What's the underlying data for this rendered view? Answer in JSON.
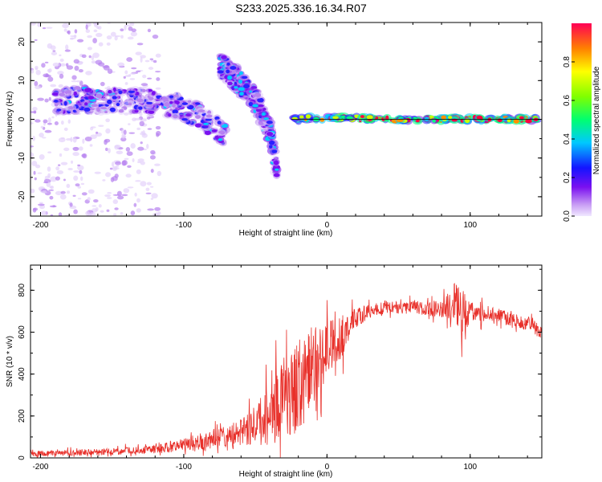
{
  "title": "S233.2025.336.16.34.R07",
  "chart_data": [
    {
      "type": "heatmap",
      "name": "spectrogram",
      "xlabel": "Height of straight line (km)",
      "ylabel": "Frequency (Hz)",
      "xlim": [
        -207,
        150
      ],
      "ylim": [
        -25,
        25
      ],
      "xticks": [
        -200,
        -100,
        0,
        100
      ],
      "xtick_labels": [
        "-200",
        "-100",
        "0",
        "100"
      ],
      "yticks": [
        -20,
        -10,
        0,
        10,
        20
      ],
      "ytick_labels": [
        "-20",
        "-10",
        "0",
        "10",
        "20"
      ],
      "colorbar": {
        "label": "Normalized spectral amplitude",
        "range": [
          0,
          1
        ],
        "ticks": [
          0.0,
          0.2,
          0.4,
          0.6,
          0.8
        ],
        "tick_labels": [
          "0.0",
          "0.2",
          "0.4",
          "0.6",
          "0.8"
        ],
        "colormap": "rainbow"
      },
      "features": [
        {
          "name": "broad-band",
          "x": [
            -190,
            -150,
            -120,
            -100,
            -85,
            -70
          ],
          "freq": [
            5,
            5,
            4.5,
            3,
            0,
            -5
          ],
          "amplitude": 0.25
        },
        {
          "name": "upper-branch",
          "x": [
            -75,
            -62,
            -50,
            -40,
            -35
          ],
          "freq": [
            14,
            10,
            5,
            -3,
            -13
          ],
          "amplitude": 0.3
        },
        {
          "name": "carrier-line",
          "x": [
            -25,
            0,
            50,
            100,
            150
          ],
          "freq": [
            0,
            0.5,
            0,
            0,
            0
          ],
          "amplitude": 0.6
        }
      ]
    },
    {
      "type": "line",
      "name": "snr",
      "xlabel": "Height of straight line (km)",
      "ylabel": "SNR (10 * v/v)",
      "xlim": [
        -207,
        150
      ],
      "ylim": [
        0,
        920
      ],
      "xticks": [
        -200,
        -100,
        0,
        100
      ],
      "xtick_labels": [
        "-200",
        "-100",
        "0",
        "100"
      ],
      "yticks": [
        0,
        200,
        400,
        600,
        800
      ],
      "ytick_labels": [
        "0",
        "200",
        "400",
        "600",
        "800"
      ],
      "color": "#e8302a",
      "envelope": {
        "x": [
          -207,
          -150,
          -120,
          -100,
          -80,
          -60,
          -50,
          -40,
          -30,
          -20,
          -10,
          0,
          10,
          20,
          30,
          40,
          60,
          80,
          90,
          95,
          100,
          120,
          140,
          150
        ],
        "mean": [
          20,
          30,
          40,
          60,
          80,
          120,
          160,
          200,
          280,
          350,
          430,
          520,
          580,
          670,
          700,
          720,
          720,
          710,
          740,
          680,
          700,
          680,
          640,
          600
        ],
        "noise": [
          15,
          20,
          25,
          40,
          60,
          80,
          120,
          180,
          250,
          280,
          250,
          160,
          130,
          60,
          40,
          40,
          40,
          50,
          130,
          150,
          60,
          40,
          40,
          40
        ]
      }
    }
  ]
}
